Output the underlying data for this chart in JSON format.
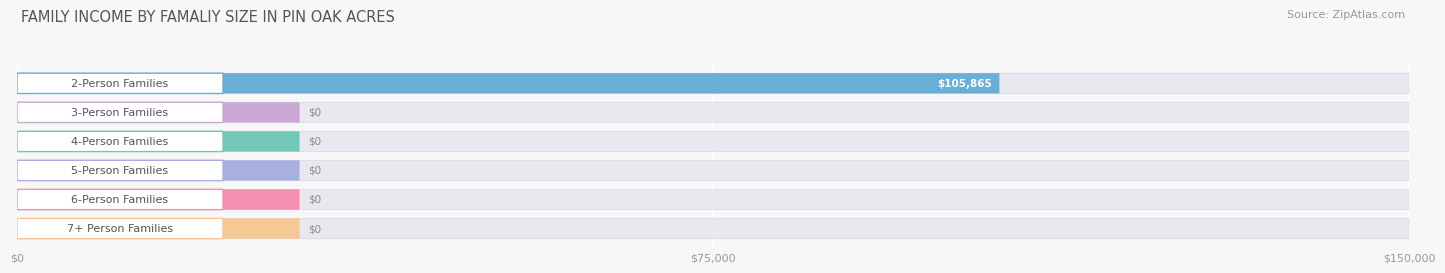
{
  "title": "FAMILY INCOME BY FAMALIY SIZE IN PIN OAK ACRES",
  "source": "Source: ZipAtlas.com",
  "categories": [
    "2-Person Families",
    "3-Person Families",
    "4-Person Families",
    "5-Person Families",
    "6-Person Families",
    "7+ Person Families"
  ],
  "values": [
    105865,
    0,
    0,
    0,
    0,
    0
  ],
  "bar_colors": [
    "#6aaed6",
    "#c9a8d4",
    "#72c8b8",
    "#a8b0e0",
    "#f48fb1",
    "#f5c896"
  ],
  "value_labels": [
    "$105,865",
    "$0",
    "$0",
    "$0",
    "$0",
    "$0"
  ],
  "xlim_max": 150000,
  "xticks": [
    0,
    75000,
    150000
  ],
  "xticklabels": [
    "$0",
    "$75,000",
    "$150,000"
  ],
  "bg_color": "#f7f7f7",
  "bar_bg_color": "#e8e8ee",
  "bar_bg_edge_color": "#d8d8e0",
  "label_pill_color": "#ffffff",
  "title_fontsize": 10.5,
  "source_fontsize": 8,
  "label_fontsize": 8,
  "value_fontsize": 7.5,
  "tick_fontsize": 8
}
